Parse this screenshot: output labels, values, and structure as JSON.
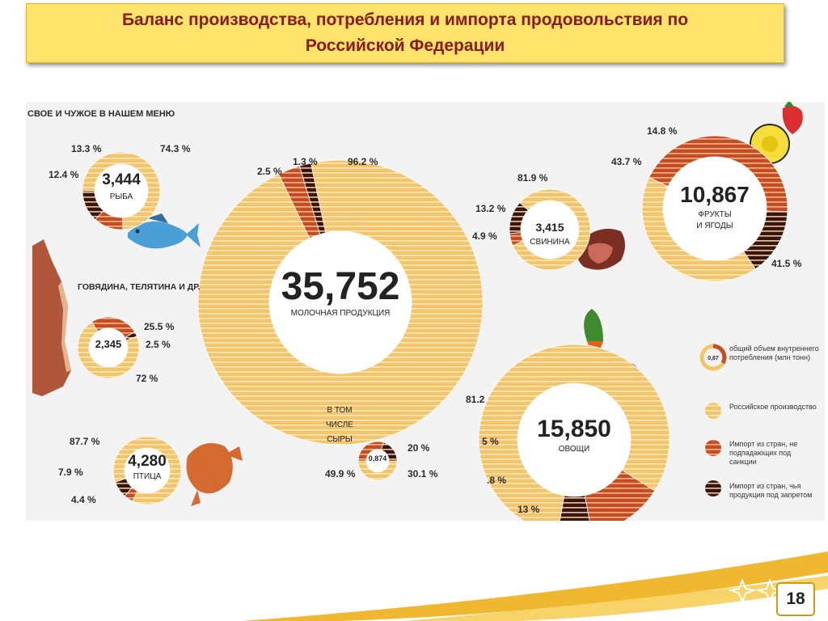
{
  "slide": {
    "title_line1": "Баланс производства, потребления и импорта продовольствия по",
    "title_line2": "Российской Федерации",
    "page_number": "18"
  },
  "infographic": {
    "heading": "СВОЕ И ЧУЖОЕ В НАШЕМ МЕНЮ",
    "colors": {
      "domestic": "#f3c46b",
      "domestic_stripe": "#fde9b8",
      "import_nonsanction": "#c84b24",
      "import_sanction": "#3a1510"
    }
  },
  "legend": {
    "consumption": "общий объем внутреннего потребления (млн тонн)",
    "consumption_sample_value": "0,87",
    "domestic": "Российское производство",
    "import_nonsanction": "Импорт из стран, не подпадающих под санкции",
    "import_sanction": "Импорт из стран, чья продукция под запретом"
  },
  "chart_data": [
    {
      "type": "donut",
      "id": "fish",
      "value": "3,444",
      "label": "РЫБА",
      "segments": [
        {
          "series": "domestic",
          "value": 74.3,
          "label": "74.3 %"
        },
        {
          "series": "import_nonsanction",
          "value": 12.4,
          "label": "12.4 %"
        },
        {
          "series": "import_sanction",
          "value": 13.3,
          "label": "13.3 %"
        }
      ]
    },
    {
      "type": "donut",
      "id": "dairy",
      "value": "35,752",
      "label": "МОЛОЧНАЯ ПРОДУКЦИЯ",
      "segments": [
        {
          "series": "domestic",
          "value": 96.2,
          "label": "96.2 %"
        },
        {
          "series": "import_nonsanction",
          "value": 2.5,
          "label": "2.5 %"
        },
        {
          "series": "import_sanction",
          "value": 1.3,
          "label": "1.3 %"
        }
      ]
    },
    {
      "type": "donut",
      "id": "pork",
      "value": "3,415",
      "label": "СВИНИНА",
      "segments": [
        {
          "series": "domestic",
          "value": 81.9,
          "label": "81.9 %"
        },
        {
          "series": "import_nonsanction",
          "value": 4.9,
          "label": "4.9 %"
        },
        {
          "series": "import_sanction",
          "value": 13.2,
          "label": "13.2 %"
        }
      ]
    },
    {
      "type": "donut",
      "id": "fruits",
      "value": "10,867",
      "label_line1": "ФРУКТЫ",
      "label_line2": "И ЯГОДЫ",
      "segments": [
        {
          "series": "domestic",
          "value": 41.5,
          "label": "41.5 %"
        },
        {
          "series": "import_nonsanction",
          "value": 43.7,
          "label": "43.7 %"
        },
        {
          "series": "import_sanction",
          "value": 14.8,
          "label": "14.8 %"
        }
      ]
    },
    {
      "type": "donut",
      "id": "beef",
      "value": "2,345",
      "label": "ГОВЯДИНА, ТЕЛЯТИНА И ДР.",
      "segments": [
        {
          "series": "domestic",
          "value": 72,
          "label": "72 %"
        },
        {
          "series": "import_nonsanction",
          "value": 25.5,
          "label": "25.5 %"
        },
        {
          "series": "import_sanction",
          "value": 2.5,
          "label": "2.5 %"
        }
      ]
    },
    {
      "type": "donut",
      "id": "cheese",
      "value": "0,874",
      "label_line1": "В ТОМ",
      "label_line2": "ЧИСЛЕ",
      "label_line3": "СЫРЫ",
      "segments": [
        {
          "series": "domestic",
          "value": 49.9,
          "label": "49.9 %"
        },
        {
          "series": "import_nonsanction",
          "value": 30.1,
          "label": "30.1 %"
        },
        {
          "series": "import_sanction",
          "value": 20,
          "label": "20 %"
        }
      ]
    },
    {
      "type": "donut",
      "id": "poultry",
      "value": "4,280",
      "label": "ПТИЦА",
      "segments": [
        {
          "series": "domestic",
          "value": 87.7,
          "label": "87.7 %"
        },
        {
          "series": "import_nonsanction",
          "value": 4.4,
          "label": "4.4 %"
        },
        {
          "series": "import_sanction",
          "value": 7.9,
          "label": "7.9 %"
        }
      ]
    },
    {
      "type": "donut",
      "id": "vegetables",
      "value": "15,850",
      "label": "ОВОЩИ",
      "segments": [
        {
          "series": "domestic",
          "value": 81.2,
          "label": "81.2"
        },
        {
          "series": "import_nonsanction",
          "value": 13,
          "label": "13 %"
        },
        {
          "series": "import_sanction",
          "value": 5.8,
          "label": ".8 %"
        }
      ],
      "extra_label": "5 %"
    }
  ]
}
